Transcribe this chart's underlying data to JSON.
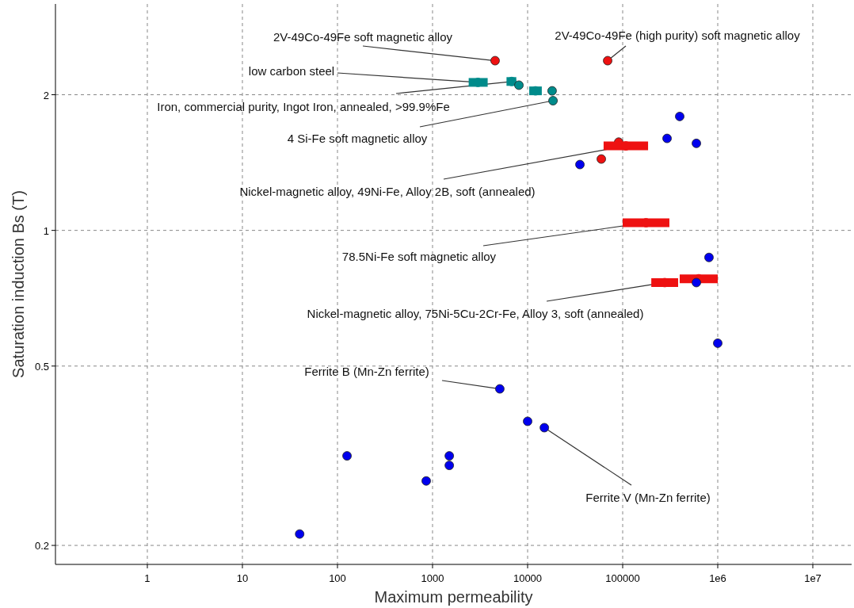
{
  "chart_data": {
    "type": "scatter",
    "xlabel": "Maximum permeability",
    "ylabel": "Saturation induction Bs (T)",
    "log": "xy",
    "grid": true,
    "marker": "circle",
    "xlim": [
      0.108,
      25600000
    ],
    "ylim": [
      0.1815,
      3.18
    ],
    "xticks": [
      1,
      10,
      100,
      1000,
      10000,
      100000,
      {
        "value": 1000000,
        "label": "1e6"
      },
      {
        "value": 10000000,
        "label": "1e7"
      }
    ],
    "yticks": [
      0.2,
      0.5,
      1,
      2
    ],
    "series": [
      {
        "color": "#0000ee",
        "x": [
          40,
          126,
          858,
          1500,
          1500,
          5100,
          10000,
          15000,
          35500,
          293000,
          398000,
          596000,
          809000,
          596000,
          1000000
        ],
        "values": [
          0.212,
          0.316,
          0.278,
          0.316,
          0.301,
          0.445,
          0.377,
          0.365,
          1.4,
          1.6,
          1.79,
          1.56,
          0.871,
          0.766,
          0.562
        ]
      },
      {
        "color": "#ee1111",
        "x": [
          4550,
          69500,
          59600,
          90800,
          108000,
          176000,
          277000,
          631000
        ],
        "values": [
          2.38,
          2.38,
          1.44,
          1.57,
          1.54,
          1.04,
          0.766,
          0.781
        ],
        "xerrors": [
          null,
          null,
          null,
          null,
          [
            63000,
            185000
          ],
          [
            100000,
            310000
          ],
          [
            200000,
            383000
          ],
          [
            398000,
            1000000
          ]
        ]
      },
      {
        "color": "#008b8b",
        "x": [
          3000,
          6800,
          8100,
          12100,
          18100,
          18500
        ],
        "values": [
          2.13,
          2.14,
          2.1,
          2.04,
          2.04,
          1.94
        ],
        "xerrors": [
          [
            2400,
            3800
          ],
          [
            6000,
            7600
          ],
          null,
          [
            10400,
            14100
          ],
          null,
          null
        ]
      }
    ],
    "annotations": [
      {
        "text": "2V-49Co-49Fe soft magnetic alloy",
        "x": 4550,
        "y": 2.38
      },
      {
        "text": "2V-49Co-49Fe (high purity) soft magnetic alloy",
        "x": 69500,
        "y": 2.38
      },
      {
        "text": "low carbon steel",
        "x": 3000,
        "y": 2.13
      },
      {
        "text": "Iron, commercial purity, Ingot Iron, annealed, >99.9%Fe",
        "x": 6800,
        "y": 2.14
      },
      {
        "text": "4 Si-Fe soft magnetic alloy",
        "x": 18500,
        "y": 1.94
      },
      {
        "text": "Nickel-magnetic alloy, 49Ni-Fe, Alloy 2B, soft (annealed)",
        "x": 108000,
        "y": 1.54
      },
      {
        "text": "78.5Ni-Fe soft magnetic alloy",
        "x": 176000,
        "y": 1.04
      },
      {
        "text": "Nickel-magnetic alloy, 75Ni-5Cu-2Cr-Fe, Alloy 3, soft (annealed)",
        "x": 277000,
        "y": 0.766
      },
      {
        "text": "Ferrite B (Mn-Zn ferrite)",
        "x": 5100,
        "y": 0.445
      },
      {
        "text": "Ferrite V (Mn-Zn ferrite)",
        "x": 15000,
        "y": 0.365
      }
    ]
  }
}
